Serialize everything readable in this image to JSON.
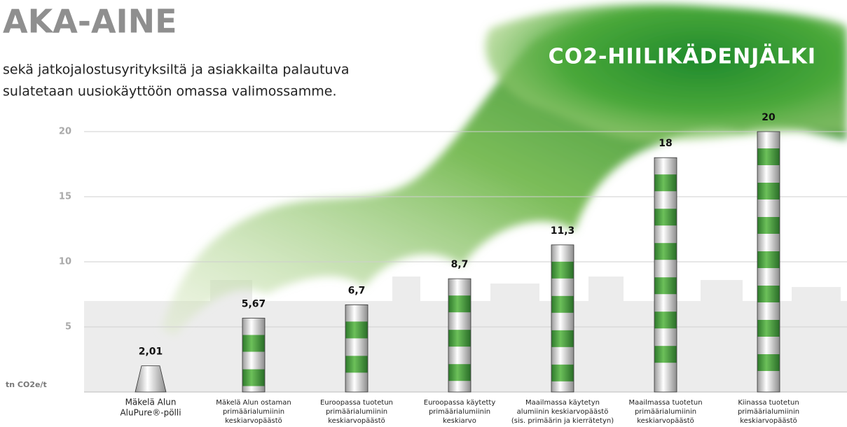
{
  "header": {
    "title": "AKA-AINE",
    "text_lines": [
      "sekä jatkojalostusyrityksiltä ja asiakkailta palautuva",
      "sulatetaan uusiokäyttöön omassa valimossamme."
    ]
  },
  "chart_data": {
    "type": "bar",
    "title": "CO2-HIILIKÄDENJÄLKI",
    "y_label": "tn CO2e/t",
    "categories": [
      [
        "Mäkelä Alun",
        "AluPure®-pölli"
      ],
      [
        "Mäkelä Alun ostaman",
        "primäärialumiinin",
        "keskiarvopäästö"
      ],
      [
        "Euroopassa tuotetun",
        "primäärialumiinin",
        "keskiarvopäästö"
      ],
      [
        "Euroopassa käytetty",
        "primäärialumiinin",
        "keskiarvo"
      ],
      [
        "Maailmassa käytetyn",
        "alumiinin keskiarvopäästö",
        "(sis. primäärin ja kierrätetyn)"
      ],
      [
        "Maailmassa tuotetun",
        "primäärialumiinin",
        "keskiarvopäästö"
      ],
      [
        "Kiinassa tuotetun",
        "primäärialumiinin",
        "keskiarvopäästö"
      ]
    ],
    "values": [
      2.01,
      5.67,
      6.7,
      8.7,
      11.3,
      18,
      20
    ],
    "value_labels": [
      "2,01",
      "5,67",
      "6,7",
      "8,7",
      "11,3",
      "18",
      "20"
    ],
    "color": "#3f9a3c",
    "ylim": [
      0,
      20
    ],
    "yticks": [
      5,
      10,
      15,
      20
    ],
    "grid": true
  }
}
